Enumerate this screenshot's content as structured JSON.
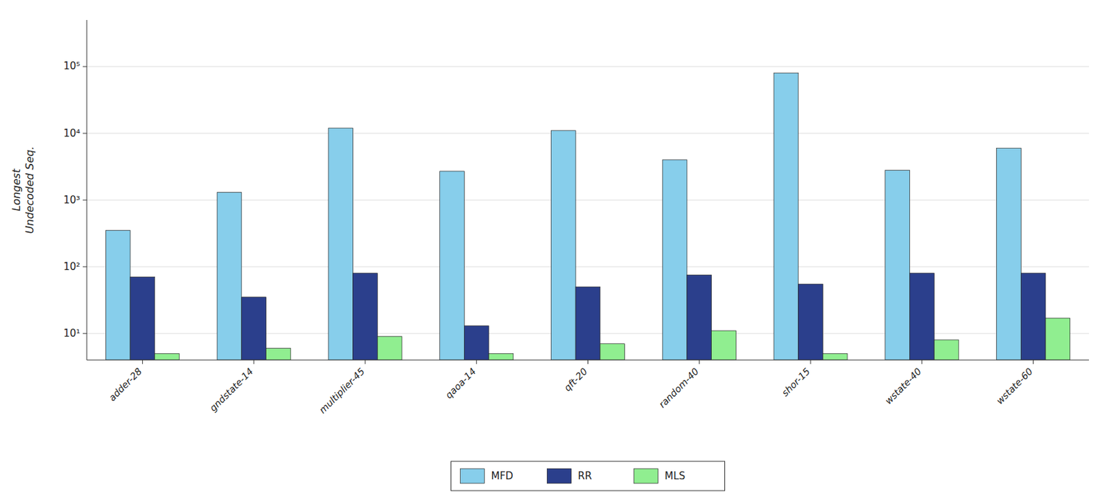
{
  "chart_data": {
    "type": "bar",
    "categories": [
      "adder-28",
      "gndstate-14",
      "multiplier-45",
      "qaoa-14",
      "qft-20",
      "random-40",
      "shor-15",
      "wstate-40",
      "wstate-60"
    ],
    "series": [
      {
        "name": "MFD",
        "color": "#87CEEB",
        "values": [
          350,
          1300,
          12000,
          2700,
          11000,
          4000,
          80000,
          2800,
          6000
        ]
      },
      {
        "name": "RR",
        "color": "#2B3F8C",
        "values": [
          70,
          35,
          80,
          13,
          50,
          75,
          55,
          80,
          80
        ]
      },
      {
        "name": "MLS",
        "color": "#90EE90",
        "values": [
          5,
          6,
          9,
          5,
          7,
          11,
          5,
          8,
          17
        ]
      }
    ],
    "ylabel": "Longest\nUndecoded Seq.",
    "ylim": [
      4,
      500000
    ],
    "yticks": [
      {
        "value": 10,
        "label": "10¹"
      },
      {
        "value": 100,
        "label": "10²"
      },
      {
        "value": 1000,
        "label": "10³"
      },
      {
        "value": 10000,
        "label": "10⁴"
      },
      {
        "value": 100000,
        "label": "10⁵"
      }
    ],
    "log": "y",
    "grid": true,
    "legend": "bottom"
  }
}
